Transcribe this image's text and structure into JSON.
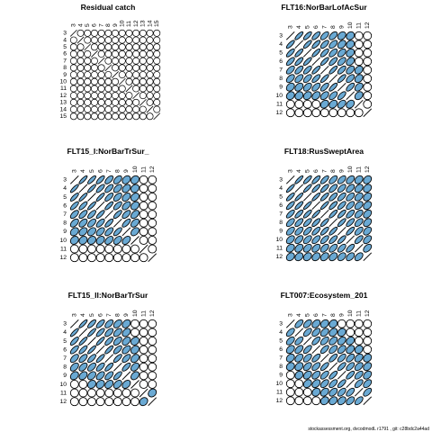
{
  "footer": "stockassessment.org, dvcodmodL r1791 , git: c28bdc2a44ad",
  "colors": {
    "cell_fill": "#6aa9d3",
    "stroke": "#000000",
    "background": "#ffffff"
  },
  "chart_data": [
    {
      "type": "heatmap",
      "subtype": "correlation-ellipse-matrix",
      "title": "Residual catch",
      "ages": [
        3,
        4,
        5,
        6,
        7,
        8,
        9,
        10,
        11,
        12,
        13,
        14,
        15
      ],
      "correlation": [
        [
          1,
          0,
          0,
          0,
          0,
          0,
          0,
          0,
          0,
          0,
          0,
          0,
          0
        ],
        [
          0,
          1,
          0,
          0,
          0,
          0,
          0,
          0,
          0,
          0,
          0,
          0,
          0
        ],
        [
          0,
          0,
          1,
          0,
          0,
          0,
          0,
          0,
          0,
          0,
          0,
          0,
          0
        ],
        [
          0,
          0,
          0,
          1,
          0,
          0,
          0,
          0,
          0,
          0,
          0,
          0,
          0
        ],
        [
          0,
          0,
          0,
          0,
          1,
          0,
          0,
          0,
          0,
          0,
          0,
          0,
          0
        ],
        [
          0,
          0,
          0,
          0,
          0,
          1,
          0,
          0,
          0,
          0,
          0,
          0,
          0
        ],
        [
          0,
          0,
          0,
          0,
          0,
          0,
          1,
          0,
          0,
          0,
          0,
          0,
          0
        ],
        [
          0,
          0,
          0,
          0,
          0,
          0,
          0,
          1,
          0,
          0,
          0,
          0,
          0
        ],
        [
          0,
          0,
          0,
          0,
          0,
          0,
          0,
          0,
          1,
          0,
          0,
          0,
          0
        ],
        [
          0,
          0,
          0,
          0,
          0,
          0,
          0,
          0,
          0,
          1,
          0,
          0,
          0
        ],
        [
          0,
          0,
          0,
          0,
          0,
          0,
          0,
          0,
          0,
          0,
          1,
          0,
          0
        ],
        [
          0,
          0,
          0,
          0,
          0,
          0,
          0,
          0,
          0,
          0,
          0,
          1,
          0
        ],
        [
          0,
          0,
          0,
          0,
          0,
          0,
          0,
          0,
          0,
          0,
          0,
          0,
          1
        ]
      ]
    },
    {
      "type": "heatmap",
      "subtype": "correlation-ellipse-matrix",
      "title": "FLT16:NorBarLofAcSur",
      "ages": [
        3,
        4,
        5,
        6,
        7,
        8,
        9,
        10,
        11,
        12
      ],
      "correlation": [
        [
          1,
          0.8,
          0.75,
          0.7,
          0.6,
          0.5,
          0.3,
          0.2,
          0,
          0
        ],
        [
          0.8,
          1,
          0.8,
          0.75,
          0.65,
          0.55,
          0.35,
          0.2,
          0,
          0
        ],
        [
          0.75,
          0.8,
          1,
          0.8,
          0.7,
          0.6,
          0.45,
          0.25,
          0,
          0
        ],
        [
          0.7,
          0.75,
          0.8,
          1,
          0.8,
          0.7,
          0.55,
          0.35,
          0,
          0
        ],
        [
          0.6,
          0.65,
          0.7,
          0.8,
          1,
          0.8,
          0.65,
          0.45,
          0.25,
          0
        ],
        [
          0.5,
          0.55,
          0.6,
          0.7,
          0.8,
          1,
          0.75,
          0.55,
          0.3,
          0
        ],
        [
          0.3,
          0.35,
          0.45,
          0.55,
          0.65,
          0.75,
          1,
          0.65,
          0.4,
          0
        ],
        [
          0.2,
          0.2,
          0.25,
          0.35,
          0.45,
          0.55,
          0.65,
          1,
          0.3,
          0
        ],
        [
          0,
          0,
          0,
          0,
          0.25,
          0.3,
          0.4,
          0.3,
          1,
          0
        ],
        [
          0,
          0,
          0,
          0,
          0,
          0,
          0,
          0,
          0,
          1
        ]
      ]
    },
    {
      "type": "heatmap",
      "subtype": "correlation-ellipse-matrix",
      "title": "FLT15_I:NorBarTrSur_",
      "ages": [
        3,
        4,
        5,
        6,
        7,
        8,
        9,
        10,
        11,
        12
      ],
      "correlation": [
        [
          1,
          0.85,
          0.8,
          0.75,
          0.6,
          0.5,
          0.3,
          0.2,
          0,
          0
        ],
        [
          0.85,
          1,
          0.85,
          0.75,
          0.65,
          0.5,
          0.35,
          0.2,
          0,
          0
        ],
        [
          0.8,
          0.85,
          1,
          0.85,
          0.7,
          0.55,
          0.4,
          0.25,
          0,
          0
        ],
        [
          0.75,
          0.75,
          0.85,
          1,
          0.8,
          0.65,
          0.5,
          0.3,
          0,
          0
        ],
        [
          0.6,
          0.65,
          0.7,
          0.8,
          1,
          0.75,
          0.6,
          0.45,
          0,
          0
        ],
        [
          0.5,
          0.5,
          0.55,
          0.65,
          0.75,
          1,
          0.7,
          0.45,
          0,
          0
        ],
        [
          0.3,
          0.35,
          0.4,
          0.5,
          0.6,
          0.7,
          1,
          0.4,
          0,
          0
        ],
        [
          0.2,
          0.2,
          0.25,
          0.3,
          0.45,
          0.45,
          0.4,
          1,
          0,
          0
        ],
        [
          0,
          0,
          0,
          0,
          0,
          0,
          0,
          0,
          1,
          0
        ],
        [
          0,
          0,
          0,
          0,
          0,
          0,
          0,
          0,
          0,
          1
        ]
      ]
    },
    {
      "type": "heatmap",
      "subtype": "correlation-ellipse-matrix",
      "title": "FLT18:RusSweptArea",
      "ages": [
        3,
        4,
        5,
        6,
        7,
        8,
        9,
        10,
        11,
        12
      ],
      "correlation": [
        [
          1,
          0.85,
          0.8,
          0.75,
          0.7,
          0.6,
          0.55,
          0.45,
          0.3,
          0.25
        ],
        [
          0.85,
          1,
          0.85,
          0.8,
          0.75,
          0.65,
          0.6,
          0.5,
          0.35,
          0.25
        ],
        [
          0.8,
          0.85,
          1,
          0.85,
          0.8,
          0.7,
          0.65,
          0.55,
          0.4,
          0.3
        ],
        [
          0.75,
          0.8,
          0.85,
          1,
          0.85,
          0.75,
          0.7,
          0.6,
          0.45,
          0.3
        ],
        [
          0.7,
          0.75,
          0.8,
          0.85,
          1,
          0.8,
          0.75,
          0.65,
          0.5,
          0.35
        ],
        [
          0.6,
          0.65,
          0.7,
          0.75,
          0.8,
          1,
          0.8,
          0.7,
          0.55,
          0.35
        ],
        [
          0.55,
          0.6,
          0.65,
          0.7,
          0.75,
          0.8,
          1,
          0.75,
          0.6,
          0.4
        ],
        [
          0.45,
          0.5,
          0.55,
          0.6,
          0.65,
          0.7,
          0.75,
          1,
          0.65,
          0.45
        ],
        [
          0.3,
          0.35,
          0.4,
          0.45,
          0.5,
          0.55,
          0.6,
          0.65,
          1,
          0.45
        ],
        [
          0.25,
          0.25,
          0.3,
          0.3,
          0.35,
          0.35,
          0.4,
          0.45,
          0.45,
          1
        ]
      ]
    },
    {
      "type": "heatmap",
      "subtype": "correlation-ellipse-matrix",
      "title": "FLT15_II:NorBarTrSur",
      "ages": [
        3,
        4,
        5,
        6,
        7,
        8,
        9,
        10,
        11,
        12
      ],
      "correlation": [
        [
          1,
          0.85,
          0.75,
          0.7,
          0.55,
          0.45,
          0.3,
          0,
          0,
          0
        ],
        [
          0.85,
          1,
          0.85,
          0.75,
          0.6,
          0.5,
          0.35,
          0,
          0,
          0
        ],
        [
          0.75,
          0.85,
          1,
          0.85,
          0.7,
          0.55,
          0.4,
          0.2,
          0,
          0
        ],
        [
          0.7,
          0.75,
          0.85,
          1,
          0.8,
          0.65,
          0.5,
          0.25,
          0,
          0
        ],
        [
          0.55,
          0.6,
          0.7,
          0.8,
          1,
          0.75,
          0.6,
          0.35,
          0,
          0
        ],
        [
          0.45,
          0.5,
          0.55,
          0.65,
          0.75,
          1,
          0.7,
          0.4,
          0,
          0
        ],
        [
          0.3,
          0.35,
          0.4,
          0.5,
          0.6,
          0.7,
          1,
          0.35,
          0,
          0
        ],
        [
          0,
          0,
          0.2,
          0.25,
          0.35,
          0.4,
          0.35,
          1,
          0,
          0
        ],
        [
          0,
          0,
          0,
          0,
          0,
          0,
          0,
          0,
          1,
          0.2
        ],
        [
          0,
          0,
          0,
          0,
          0,
          0,
          0,
          0,
          0.2,
          1
        ]
      ]
    },
    {
      "type": "heatmap",
      "subtype": "correlation-ellipse-matrix",
      "title": "FLT007:Ecosystem_201",
      "ages": [
        3,
        4,
        5,
        6,
        7,
        8,
        9,
        10,
        11,
        12
      ],
      "correlation": [
        [
          1,
          0.6,
          0.5,
          0.35,
          0.25,
          0.2,
          0,
          0,
          0,
          0
        ],
        [
          0.6,
          1,
          0.6,
          0.5,
          0.4,
          0.3,
          0.2,
          0,
          0,
          0
        ],
        [
          0.5,
          0.6,
          1,
          0.65,
          0.55,
          0.45,
          0.35,
          0.25,
          0,
          0
        ],
        [
          0.35,
          0.5,
          0.65,
          1,
          0.65,
          0.55,
          0.45,
          0.35,
          0.2,
          0
        ],
        [
          0.25,
          0.4,
          0.55,
          0.65,
          1,
          0.7,
          0.6,
          0.5,
          0.35,
          0.2
        ],
        [
          0.2,
          0.3,
          0.45,
          0.55,
          0.7,
          1,
          0.7,
          0.6,
          0.45,
          0.3
        ],
        [
          0,
          0.2,
          0.35,
          0.45,
          0.6,
          0.7,
          1,
          0.7,
          0.55,
          0.35
        ],
        [
          0,
          0,
          0.25,
          0.35,
          0.5,
          0.6,
          0.7,
          1,
          0.6,
          0.45
        ],
        [
          0,
          0,
          0,
          0.2,
          0.35,
          0.45,
          0.55,
          0.6,
          1,
          0.55
        ],
        [
          0,
          0,
          0,
          0,
          0.2,
          0.3,
          0.35,
          0.45,
          0.55,
          1
        ]
      ]
    }
  ]
}
